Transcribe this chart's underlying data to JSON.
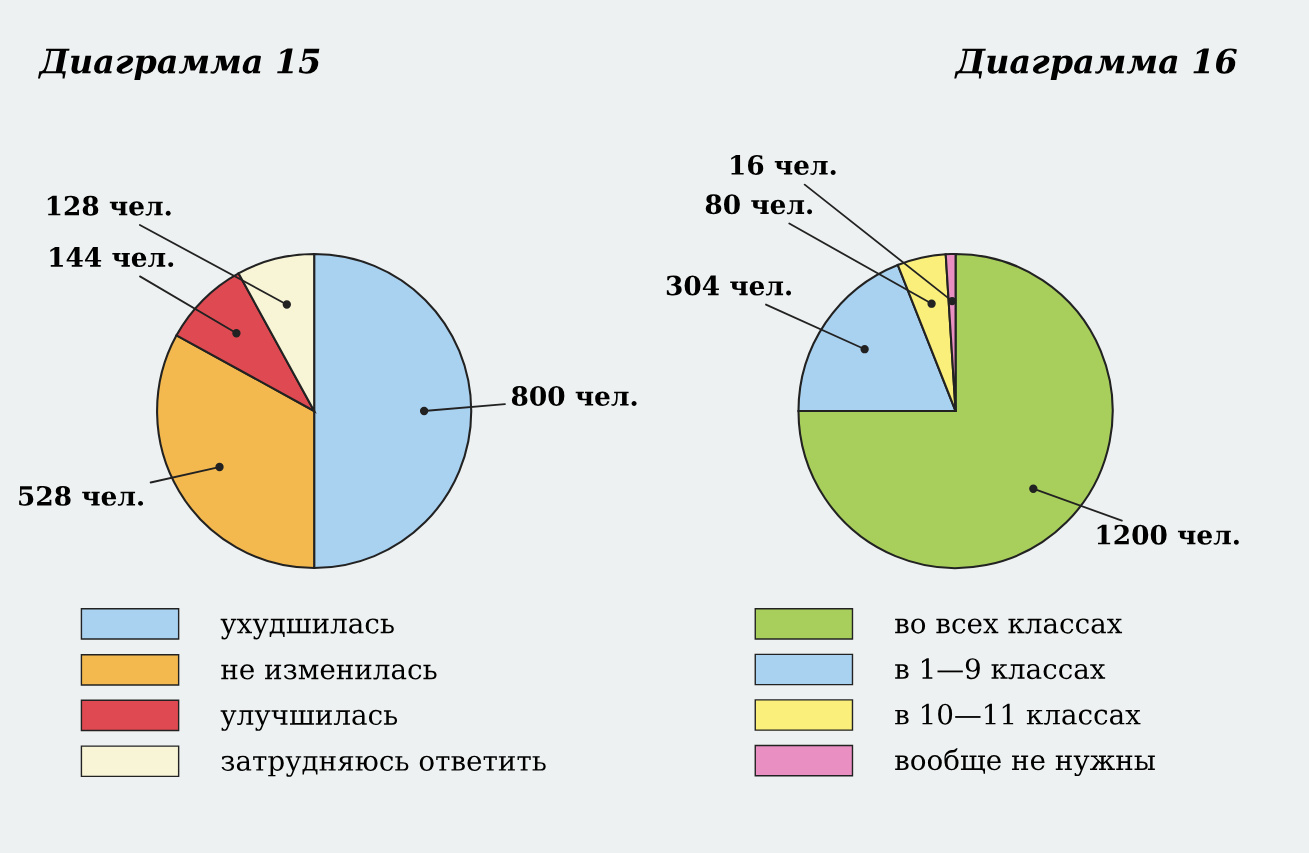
{
  "chart_data": [
    {
      "type": "pie",
      "title": "Диаграмма 15",
      "categories": [
        "ухудшилась",
        "не изменилась",
        "улучшилась",
        "затрудняюсь ответить"
      ],
      "values": [
        800,
        528,
        144,
        128
      ],
      "colors": [
        "#a9d1f0",
        "#f3b84e",
        "#df4a52",
        "#f8f4d6"
      ],
      "value_labels": [
        "800 чел.",
        "528 чел.",
        "144 чел.",
        "128 чел."
      ],
      "legend": "bottom"
    },
    {
      "type": "pie",
      "title": "Диаграмма 16",
      "categories": [
        "во всех классах",
        "в 1—9 классах",
        "в 10—11 классах",
        "вообще не нужны"
      ],
      "values": [
        1200,
        304,
        80,
        16
      ],
      "colors": [
        "#a8cf5c",
        "#a9d1f0",
        "#f9ef7a",
        "#e98fc2"
      ],
      "value_labels": [
        "1200 чел.",
        "304 чел.",
        "80 чел.",
        "16 чел."
      ],
      "legend": "bottom"
    }
  ]
}
